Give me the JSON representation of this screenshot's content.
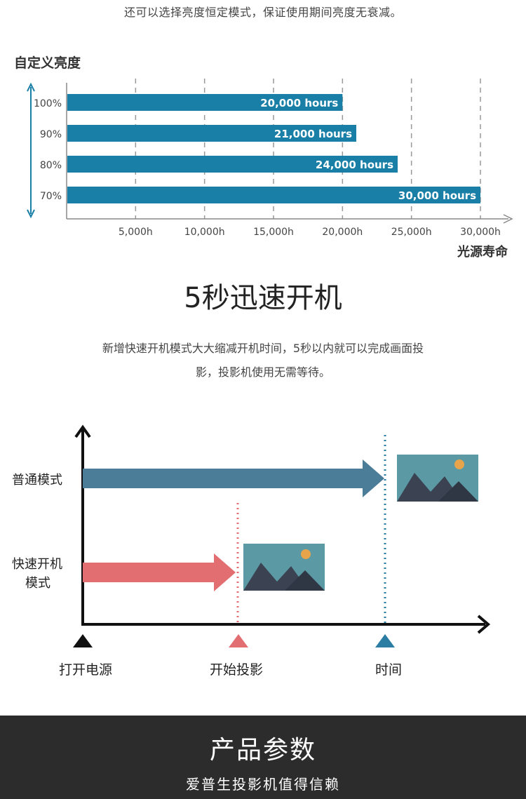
{
  "intro": {
    "text": "还可以选择亮度恒定模式，保证使用期间亮度无衰减。"
  },
  "chart_data": {
    "type": "bar",
    "orientation": "horizontal",
    "title": "自定义亮度",
    "xlabel": "光源寿命",
    "ylabel": "",
    "categories": [
      "100%",
      "90%",
      "80%",
      "70%"
    ],
    "values": [
      20000,
      21000,
      24000,
      30000
    ],
    "data_labels": [
      "20,000 hours",
      "21,000 hours",
      "24,000 hours",
      "30,000 hours"
    ],
    "x_ticks": [
      "5,000h",
      "10,000h",
      "15,000h",
      "20,000h",
      "25,000h",
      "30,000h"
    ],
    "x_tick_values": [
      5000,
      10000,
      15000,
      20000,
      25000,
      30000
    ],
    "xlim": [
      0,
      30000
    ],
    "grid": "vertical dashed",
    "bar_color": "#1a7fa6"
  },
  "feature": {
    "title": "5秒迅速开机",
    "desc_line1": "新增快速开机模式大大缩减开机时间，5秒以内就可以完成画面投",
    "desc_line2": "影，投影机使用无需等待。"
  },
  "diagram": {
    "normal_label": "普通模式",
    "fast_label_1": "快速开机",
    "fast_label_2": "模式",
    "marker_power": "打开电源",
    "marker_project": "开始投影",
    "marker_time": "时间",
    "colors": {
      "normal": "#4b7d99",
      "fast": "#e36e72",
      "time_marker": "#2b7da3",
      "image_bg": "#5b9aa4",
      "mountain": "#3b4353",
      "sun": "#e8a44a"
    }
  },
  "footer": {
    "title": "产品参数",
    "subtitle": "爱普生投影机值得信赖"
  }
}
